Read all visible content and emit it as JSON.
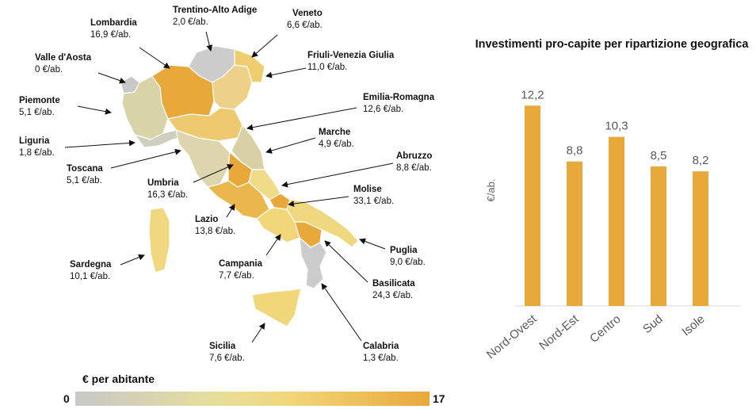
{
  "map": {
    "legend": {
      "title": "€ per abitante",
      "min": "0",
      "max": "17",
      "colors": [
        "#c8c8c8",
        "#e6df9a",
        "#f2d77a",
        "#e9a83a"
      ]
    },
    "regions": [
      {
        "id": "lombardia",
        "name": "Lombardia",
        "value": "16,9 €/ab."
      },
      {
        "id": "trentino",
        "name": "Trentino-Alto Adige",
        "value": "2,0 €/ab."
      },
      {
        "id": "veneto",
        "name": "Veneto",
        "value": "6,6 €/ab."
      },
      {
        "id": "valle",
        "name": "Valle d'Aosta",
        "value": "0 €/ab."
      },
      {
        "id": "friuli",
        "name": "Friuli-Venezia Giulia",
        "value": "11,0 €/ab."
      },
      {
        "id": "piemonte",
        "name": "Piemonte",
        "value": "5,1 €/ab."
      },
      {
        "id": "emilia",
        "name": "Emilia-Romagna",
        "value": "12,6 €/ab."
      },
      {
        "id": "liguria",
        "name": "Liguria",
        "value": "1,8 €/ab."
      },
      {
        "id": "marche",
        "name": "Marche",
        "value": "4,9 €/ab."
      },
      {
        "id": "toscana",
        "name": "Toscana",
        "value": "5,1 €/ab."
      },
      {
        "id": "abruzzo",
        "name": "Abruzzo",
        "value": "8,8 €/ab."
      },
      {
        "id": "umbria",
        "name": "Umbria",
        "value": "16,3 €/ab."
      },
      {
        "id": "molise",
        "name": "Molise",
        "value": "33,1 €/ab."
      },
      {
        "id": "lazio",
        "name": "Lazio",
        "value": "13,8 €/ab."
      },
      {
        "id": "puglia",
        "name": "Puglia",
        "value": "9,0 €/ab."
      },
      {
        "id": "sardegna",
        "name": "Sardegna",
        "value": "10,1 €/ab."
      },
      {
        "id": "campania",
        "name": "Campania",
        "value": "7,7 €/ab."
      },
      {
        "id": "basilicata",
        "name": "Basilicata",
        "value": "24,3 €/ab."
      },
      {
        "id": "sicilia",
        "name": "Sicilia",
        "value": "7,6 €/ab."
      },
      {
        "id": "calabria",
        "name": "Calabria",
        "value": "1,3 €/ab."
      }
    ]
  },
  "chart_data": {
    "type": "bar",
    "title": "Investimenti pro-capite per ripartizione geografica",
    "ylabel": "€/ab.",
    "categories": [
      "Nord-Ovest",
      "Nord-Est",
      "Centro",
      "Sud",
      "Isole"
    ],
    "values": [
      12.2,
      8.8,
      10.3,
      8.5,
      8.2
    ],
    "value_labels": [
      "12,2",
      "8,8",
      "10,3",
      "8,5",
      "8,2"
    ],
    "ylim": [
      0,
      14
    ],
    "grid": false,
    "bar_color": "#e9a83a"
  }
}
